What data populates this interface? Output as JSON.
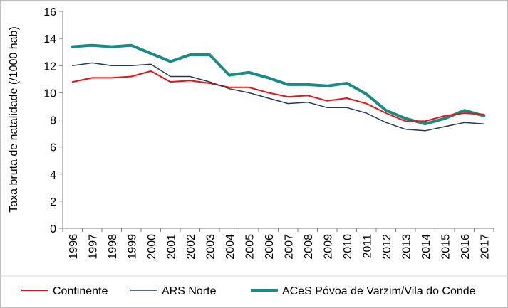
{
  "chart_data": {
    "type": "line",
    "ylabel": "Taxa bruta de natalidade  (/1000 hab)",
    "xlabel": "",
    "ylim": [
      0,
      16
    ],
    "yticks": [
      0,
      2,
      4,
      6,
      8,
      10,
      12,
      14,
      16
    ],
    "grid": false,
    "legend_position": "bottom",
    "categories": [
      "1996",
      "1997",
      "1998",
      "1999",
      "2000",
      "2001",
      "2002",
      "2003",
      "2004",
      "2005",
      "2006",
      "2007",
      "2008",
      "2009",
      "2010",
      "2011",
      "2012",
      "2013",
      "2014",
      "2015",
      "2016",
      "2017"
    ],
    "series": [
      {
        "name": "Continente",
        "color": "#ee1111",
        "values": [
          10.8,
          11.1,
          11.1,
          11.2,
          11.6,
          10.8,
          10.9,
          10.7,
          10.4,
          10.4,
          10.0,
          9.7,
          9.8,
          9.4,
          9.6,
          9.2,
          8.5,
          7.9,
          7.9,
          8.3,
          8.5,
          8.4
        ]
      },
      {
        "name": "ARS Norte",
        "color": "#1f3a5a",
        "values": [
          12.0,
          12.2,
          12.0,
          12.0,
          12.1,
          11.2,
          11.2,
          10.8,
          10.3,
          10.0,
          9.6,
          9.2,
          9.3,
          8.9,
          8.9,
          8.5,
          7.8,
          7.3,
          7.2,
          7.5,
          7.8,
          7.7
        ]
      },
      {
        "name": "ACeS Póvoa de Varzim/Vila do Conde",
        "color": "#178c87",
        "values": [
          13.4,
          13.5,
          13.4,
          13.5,
          12.9,
          12.3,
          12.8,
          12.8,
          11.3,
          11.5,
          11.1,
          10.6,
          10.6,
          10.5,
          10.7,
          9.9,
          8.7,
          8.1,
          7.7,
          8.1,
          8.7,
          8.3
        ]
      }
    ]
  }
}
